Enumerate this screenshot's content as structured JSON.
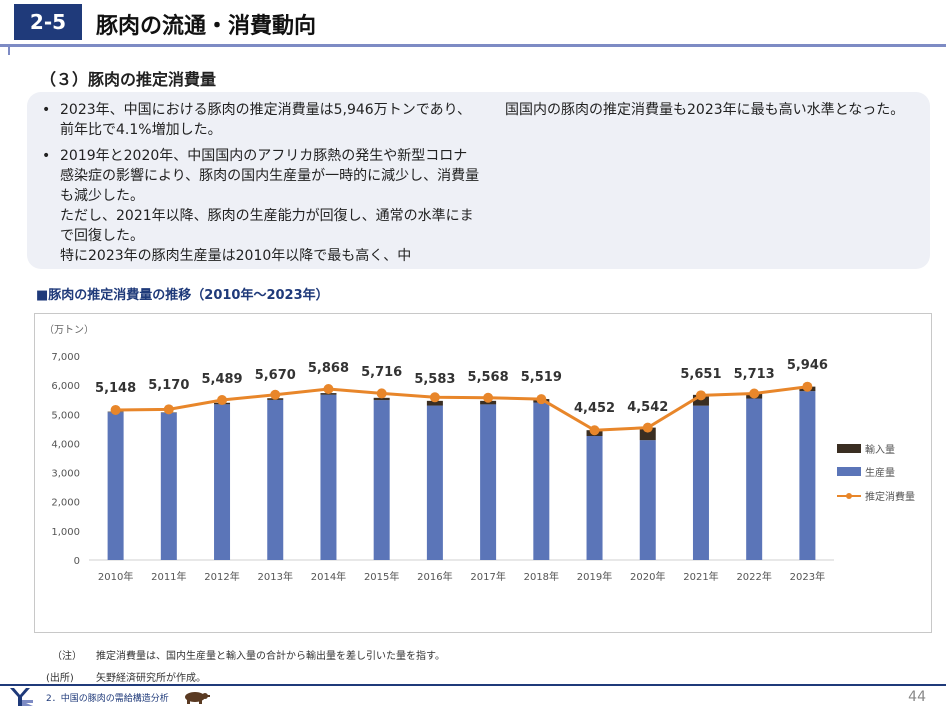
{
  "header": {
    "section_no": "2-5",
    "title": "豚肉の流通・消費動向"
  },
  "section": {
    "title": "（３）豚肉の推定消費量"
  },
  "bullets": [
    "2023年、中国における豚肉の推定消費量は5,946万トンであり、前年比で4.1%増加した。",
    "2019年と2020年、中国国内のアフリカ豚熱の発生や新型コロナ感染症の影響により、豚肉の国内生産量が一時的に減少し、消費量も減少した。"
  ],
  "bullet2_cont": [
    "ただし、2021年以降、豚肉の生産能力が回復し、通常の水準にまで回復した。",
    "特に2023年の豚肉生産量は2010年以降で最も高く、中"
  ],
  "col2_text": "国国内の豚肉の推定消費量も2023年に最も高い水準となった。",
  "bullet_mark": "•",
  "chart_heading": "■豚肉の推定消費量の推移（2010年～2023年）",
  "chart_data": {
    "type": "bar",
    "title": "",
    "ylabel": "（万トン）",
    "ylim": [
      0,
      7000
    ],
    "yticks": [
      "0",
      "1,000",
      "2,000",
      "3,000",
      "4,000",
      "5,000",
      "6,000",
      "7,000"
    ],
    "categories": [
      "2010年",
      "2011年",
      "2012年",
      "2013年",
      "2014年",
      "2015年",
      "2016年",
      "2017年",
      "2018年",
      "2019年",
      "2020年",
      "2021年",
      "2022年",
      "2023年"
    ],
    "series": [
      {
        "name": "生産量",
        "kind": "bar",
        "color": "#5b75b8",
        "values": [
          5071,
          5053,
          5343,
          5493,
          5671,
          5487,
          5299,
          5340,
          5404,
          4255,
          4113,
          5296,
          5541,
          5794
        ]
      },
      {
        "name": "輸入量",
        "kind": "bar-stack",
        "color": "#3a2e22",
        "values": [
          20,
          14,
          52,
          58,
          56,
          78,
          162,
          122,
          119,
          199,
          430,
          371,
          176,
          155
        ]
      },
      {
        "name": "推定消費量",
        "kind": "line",
        "color": "#e8862a",
        "values": [
          5148,
          5170,
          5489,
          5670,
          5868,
          5716,
          5583,
          5568,
          5519,
          4452,
          4542,
          5651,
          5713,
          5946
        ]
      }
    ],
    "data_labels": [
      "5,148",
      "5,170",
      "5,489",
      "5,670",
      "5,868",
      "5,716",
      "5,583",
      "5,568",
      "5,519",
      "4,452",
      "4,542",
      "5,651",
      "5,713",
      "5,946"
    ],
    "legend": [
      "輸入量",
      "生産量",
      "推定消費量"
    ],
    "legend_position": "right"
  },
  "notes": {
    "note_label": "（注）",
    "note_text": "推定消費量は、国内生産量と輸入量の合計から輸出量を差し引いた量を指す。",
    "source_label": "(出所)",
    "source_text": "矢野経済研究所が作成。"
  },
  "footer": {
    "text": "2．中国の豚肉の需給構造分析",
    "page": "44"
  }
}
